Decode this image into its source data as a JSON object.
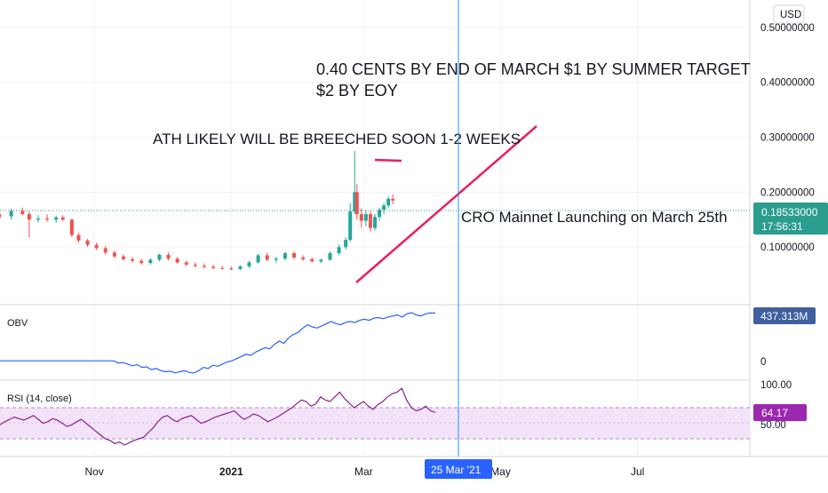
{
  "currency_label": "USD",
  "colors": {
    "up": "#26a69a",
    "down": "#ef5350",
    "annotation_line": "#e91e63",
    "obv_line": "#2962ff",
    "obv_badge": "#3f5f9e",
    "rsi_line": "#8e1e8e",
    "rsi_badge": "#9c27b0",
    "rsi_band": "#f3e3f8",
    "price_badge": "#2a9d8f",
    "cursor_line": "#2196f3",
    "date_badge": "#2962ff",
    "grid": "#f0f3fa"
  },
  "chart_data": [
    {
      "type": "candlestick",
      "name": "price",
      "y_ticks": [
        "0.50000000",
        "0.40000000",
        "0.30000000",
        "0.20000000",
        "0.10000000"
      ],
      "ylim": [
        0.0,
        0.55
      ],
      "x_ticks": [
        "Nov",
        "2021",
        "Mar",
        "May",
        "Jul"
      ],
      "x_range": [
        "2020-09-20",
        "2021-08-20"
      ],
      "last_price": "0.18533000",
      "countdown": "17:56:31",
      "ohlc_daily": [
        [
          "2020-09-20",
          0.158,
          0.162,
          0.152,
          0.156
        ],
        [
          "2020-09-25",
          0.156,
          0.17,
          0.15,
          0.166
        ],
        [
          "2020-09-30",
          0.166,
          0.172,
          0.158,
          0.16
        ],
        [
          "2020-10-03",
          0.16,
          0.165,
          0.118,
          0.15
        ],
        [
          "2020-10-07",
          0.15,
          0.158,
          0.145,
          0.152
        ],
        [
          "2020-10-11",
          0.152,
          0.16,
          0.146,
          0.15
        ],
        [
          "2020-10-15",
          0.15,
          0.157,
          0.144,
          0.154
        ],
        [
          "2020-10-18",
          0.154,
          0.158,
          0.147,
          0.15
        ],
        [
          "2020-10-22",
          0.15,
          0.152,
          0.118,
          0.122
        ],
        [
          "2020-10-25",
          0.122,
          0.126,
          0.108,
          0.112
        ],
        [
          "2020-10-29",
          0.112,
          0.115,
          0.1,
          0.104
        ],
        [
          "2020-11-02",
          0.104,
          0.108,
          0.095,
          0.098
        ],
        [
          "2020-11-06",
          0.098,
          0.102,
          0.086,
          0.09
        ],
        [
          "2020-11-10",
          0.09,
          0.094,
          0.08,
          0.083
        ],
        [
          "2020-11-14",
          0.083,
          0.087,
          0.075,
          0.078
        ],
        [
          "2020-11-18",
          0.078,
          0.082,
          0.072,
          0.075
        ],
        [
          "2020-11-22",
          0.075,
          0.079,
          0.068,
          0.071
        ],
        [
          "2020-11-26",
          0.071,
          0.08,
          0.068,
          0.077
        ],
        [
          "2020-11-30",
          0.077,
          0.088,
          0.074,
          0.086
        ],
        [
          "2020-12-04",
          0.086,
          0.09,
          0.076,
          0.079
        ],
        [
          "2020-12-08",
          0.079,
          0.082,
          0.07,
          0.072
        ],
        [
          "2020-12-12",
          0.072,
          0.075,
          0.065,
          0.068
        ],
        [
          "2020-12-16",
          0.068,
          0.072,
          0.063,
          0.066
        ],
        [
          "2020-12-20",
          0.066,
          0.07,
          0.061,
          0.064
        ],
        [
          "2020-12-24",
          0.064,
          0.068,
          0.06,
          0.062
        ],
        [
          "2020-12-28",
          0.062,
          0.066,
          0.059,
          0.061
        ],
        [
          "2021-01-01",
          0.061,
          0.065,
          0.058,
          0.06
        ],
        [
          "2021-01-05",
          0.06,
          0.067,
          0.058,
          0.065
        ],
        [
          "2021-01-09",
          0.065,
          0.075,
          0.062,
          0.072
        ],
        [
          "2021-01-13",
          0.072,
          0.088,
          0.07,
          0.085
        ],
        [
          "2021-01-17",
          0.085,
          0.09,
          0.074,
          0.077
        ],
        [
          "2021-01-21",
          0.077,
          0.082,
          0.072,
          0.079
        ],
        [
          "2021-01-25",
          0.079,
          0.092,
          0.076,
          0.089
        ],
        [
          "2021-01-29",
          0.089,
          0.092,
          0.078,
          0.081
        ],
        [
          "2021-02-02",
          0.081,
          0.085,
          0.075,
          0.078
        ],
        [
          "2021-02-06",
          0.078,
          0.081,
          0.072,
          0.074
        ],
        [
          "2021-02-10",
          0.074,
          0.079,
          0.071,
          0.077
        ],
        [
          "2021-02-14",
          0.077,
          0.092,
          0.075,
          0.089
        ],
        [
          "2021-02-18",
          0.089,
          0.105,
          0.085,
          0.1
        ],
        [
          "2021-02-21",
          0.1,
          0.118,
          0.096,
          0.113
        ],
        [
          "2021-02-23",
          0.113,
          0.18,
          0.11,
          0.165
        ],
        [
          "2021-02-25",
          0.165,
          0.275,
          0.16,
          0.2
        ],
        [
          "2021-02-26",
          0.2,
          0.215,
          0.15,
          0.16
        ],
        [
          "2021-02-28",
          0.16,
          0.17,
          0.135,
          0.148
        ],
        [
          "2021-03-02",
          0.148,
          0.168,
          0.138,
          0.16
        ],
        [
          "2021-03-04",
          0.16,
          0.165,
          0.128,
          0.135
        ],
        [
          "2021-03-06",
          0.135,
          0.16,
          0.13,
          0.155
        ],
        [
          "2021-03-08",
          0.155,
          0.172,
          0.148,
          0.168
        ],
        [
          "2021-03-10",
          0.168,
          0.18,
          0.16,
          0.176
        ],
        [
          "2021-03-12",
          0.176,
          0.192,
          0.17,
          0.188
        ],
        [
          "2021-03-14",
          0.188,
          0.196,
          0.178,
          0.185
        ]
      ],
      "annotations": [
        {
          "text": "0.40 CENTS BY END OF MARCH $1 BY SUMMER TARGET"
        },
        {
          "text": "$2 BY EOY"
        },
        {
          "text": "ATH LIKELY WILL BE BREECHED SOON 1-2 WEEKS"
        },
        {
          "text": "CRO Mainnet Launching on March 25th"
        }
      ]
    },
    {
      "type": "line",
      "name": "OBV",
      "label": "OBV",
      "last_value": "437.313M",
      "y_ticks": [
        "0"
      ],
      "values": [
        0,
        0,
        0,
        0,
        0,
        0,
        0,
        0,
        0,
        0,
        0,
        0,
        0,
        0,
        0,
        0,
        0,
        0,
        0,
        0,
        0,
        0,
        0,
        0,
        0,
        -20,
        -15,
        -30,
        -45,
        -35,
        -60,
        -55,
        -80,
        -70,
        -90,
        -100,
        -95,
        -110,
        -100,
        -90,
        -105,
        -110,
        -90,
        -60,
        -70,
        -40,
        -50,
        -30,
        -10,
        0,
        20,
        40,
        60,
        50,
        80,
        100,
        120,
        110,
        150,
        180,
        160,
        210,
        240,
        260,
        300,
        330,
        310,
        300,
        320,
        340,
        360,
        340,
        330,
        350,
        360,
        350,
        370,
        380,
        370,
        390,
        395,
        385,
        400,
        410,
        420,
        400,
        430,
        440,
        420,
        410,
        430,
        437,
        437
      ]
    },
    {
      "type": "line",
      "name": "RSI",
      "label": "RSI (14, close)",
      "last_value": "64.17",
      "y_ticks": [
        "100.00",
        "50.00"
      ],
      "band": [
        30,
        70
      ],
      "ylim": [
        0,
        100
      ],
      "values": [
        48,
        52,
        55,
        58,
        56,
        54,
        57,
        60,
        55,
        50,
        52,
        56,
        54,
        50,
        46,
        48,
        52,
        55,
        50,
        45,
        40,
        35,
        30,
        28,
        24,
        26,
        22,
        25,
        28,
        30,
        32,
        38,
        44,
        52,
        58,
        60,
        55,
        52,
        56,
        58,
        60,
        55,
        50,
        52,
        55,
        58,
        60,
        62,
        64,
        66,
        60,
        55,
        58,
        62,
        60,
        56,
        52,
        55,
        58,
        62,
        66,
        70,
        75,
        80,
        78,
        72,
        75,
        84,
        80,
        78,
        84,
        90,
        82,
        76,
        70,
        74,
        78,
        72,
        68,
        74,
        78,
        84,
        88,
        90,
        95,
        80,
        70,
        66,
        68,
        72,
        66,
        64
      ]
    }
  ],
  "axis_badges": {
    "date": "25 Mar '21"
  }
}
